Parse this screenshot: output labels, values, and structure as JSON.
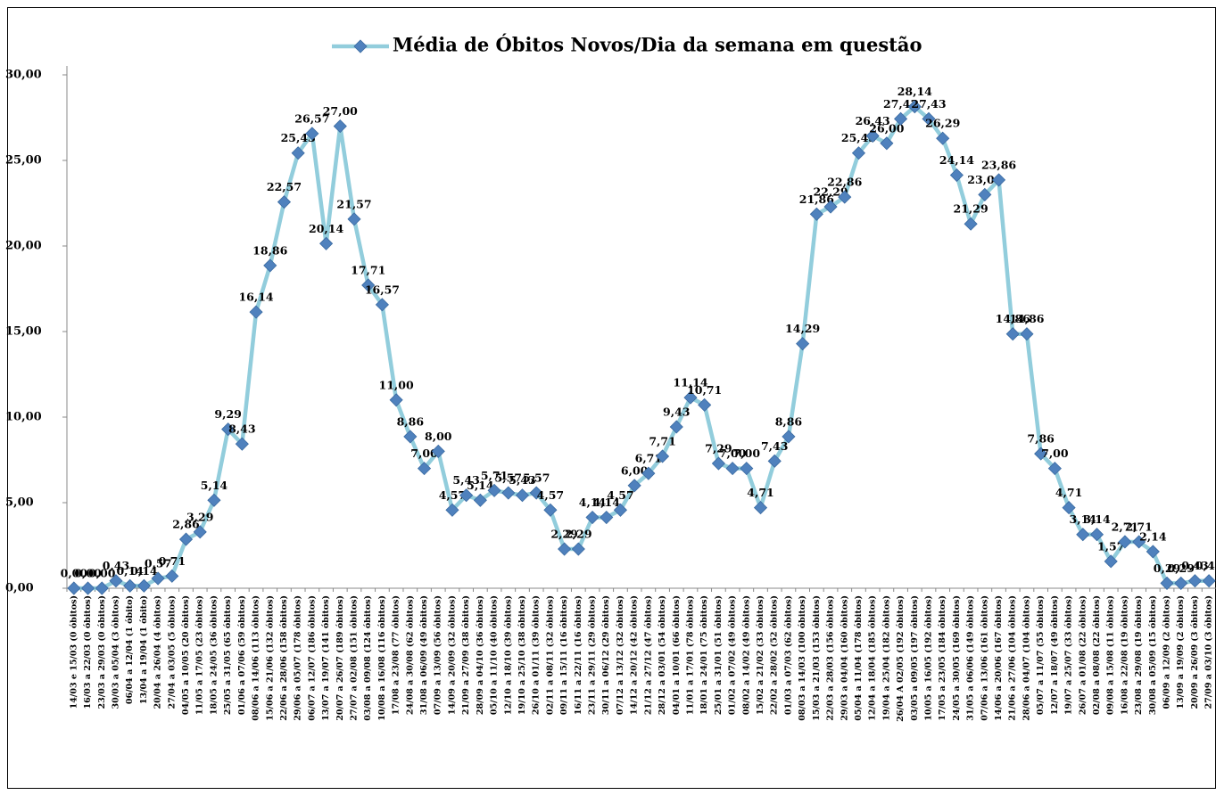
{
  "chart_data": {
    "type": "line",
    "legend_position": "top",
    "grid": false,
    "categories": [
      "14/03 e 15/03 (0 óbitos)",
      "16/03 a 22/03 (0 óbitos)",
      "23/03 a 29/03 (0 óbitos)",
      "30/03 a 05/04 (3 óbitos)",
      "06/04 a 12/04 (1 óbito)",
      "13/04 a 19/04 (1 óbito)",
      "20/04 a 26/04 (4 óbitos)",
      "27/04 a 03/05 (5 óbitos)",
      "04/05 a 10/05 (20 óbitos)",
      "11/05 a 17/05 (23 óbitos)",
      "18/05 a 24/05 (36 óbitos)",
      "25/05 a 31/05 (65 óbitos)",
      "01/06 a 07/06 (59 óbitos)",
      "08/06 a 14/06 (113 óbitos)",
      "15/06 a 21/06 (132 óbitos)",
      "22/06 a 28/06 (158 óbitos)",
      "29/06 a 05/07 (178 óbitos)",
      "06/07 a 12/07 (186 óbitos)",
      "13/07 a 19/07 (141 óbitos)",
      "20/07 a 26/07 (189 óbitos)",
      "27/07 a 02/08 (151 óbitos)",
      "03/08 a 09/08 (124 óbitos)",
      "10/08 a 16/08 (116 óbitos)",
      "17/08 a 23/08 (77 óbitos)",
      "24/08 a 30/08 (62 óbitos)",
      "31/08 a 06/09 (49 óbitos)",
      "07/09 a 13/09 (56 óbitos)",
      "14/09 a 20/09 (32 óbitos)",
      "21/09 a 27/09 (38 óbitos)",
      "28/09 a 04/10 (36 óbitos)",
      "05/10 a 11/10 (40 óbitos)",
      "12/10 a 18/10 (39 óbitos)",
      "19/10 a 25/10 (38 óbitos)",
      "26/10 a 01/11 (39 óbitos)",
      "02/11 a 08/11 (32 óbitos)",
      "09/11 a 15/11 (16 óbitos)",
      "16/11 a 22/11 (16 óbitos)",
      "23/11 a 29/11 (29 óbitos)",
      "30/11 a 06/12 (29 óbitos)",
      "07/12 a 13/12 (32 óbitos)",
      "14/12 a 20/12 (42 óbitos)",
      "21/12 a 27/12 (47 óbitos)",
      "28/12 a 03/01 (54 óbitos)",
      "04/01 a 10/01 (66 óbitos)",
      "11/01 a 17/01 (78 óbitos)",
      "18/01 a 24/01 (75 óbitos)",
      "25/01 a 31/01 (51 óbitos)",
      "01/02 a 07/02 (49 óbitos)",
      "08/02 a 14/02 (49 óbitos)",
      "15/02 a 21/02 (33 óbitos)",
      "22/02 a 28/02 (52 óbitos)",
      "01/03 a 07/03 (62 óbitos)",
      "08/03 a 14/03 (100 óbitos)",
      "15/03 a 21/03 (153 óbitos)",
      "22/03 a 28/03 (156 óbitos)",
      "29/03 a 04/04 (160 óbitos)",
      "05/04 a 11/04 (178 óbitos)",
      "12/04 a 18/04 (185 óbitos)",
      "19/04 a 25/04 (182 óbitos)",
      "26/04 A 02/05 (192 óbitos)",
      "03/05 a 09/05 (197 óbitos)",
      "10/05 a 16/05 (192 óbitos)",
      "17/05 a 23/05 (184 óbitos)",
      "24/05 a 30/05 (169 óbitos)",
      "31/05 a 06/06 (149 óbitos)",
      "07/06 a 13/06 (161 óbitos)",
      "14/06 a 20/06 (167 óbitos)",
      "21/06 a 27/06 (104 óbitos)",
      "28/06 a 04/07 (104 óbitos)",
      "05/07 a 11/07 (55 óbitos)",
      "12/07 a 18/07 (49 óbitos)",
      "19/07 a 25/07 (33 óbitos)",
      "26/07 a 01/08 (22 óbitos)",
      "02/08 a 08/08 (22 óbitos)",
      "09/08 a 15/08 (11 óbitos)",
      "16/08 a 22/08 (19 óbitos)",
      "23/08 a 29/08 (19 óbitos)",
      "30/08 a 05/09 (15 óbitos)",
      "06/09 a 12/09 (2 óbitos)",
      "13/09 a 19/09 (2 óbitos)",
      "20/09 a 26/09 (3 óbitos)",
      "27/09 a 03/10 (3 óbitos)"
    ],
    "series": [
      {
        "name": "Média de Óbitos Novos/Dia da semana em questão",
        "color": "#92cddc",
        "marker_color": "#4f81bd",
        "values": [
          0,
          0,
          0,
          0.43,
          0.14,
          0.14,
          0.57,
          0.71,
          2.86,
          3.29,
          5.14,
          9.29,
          8.43,
          16.14,
          18.86,
          22.57,
          25.43,
          26.57,
          20.14,
          27,
          21.57,
          17.71,
          16.57,
          11,
          8.86,
          7,
          8,
          4.57,
          5.43,
          5.14,
          5.71,
          5.57,
          5.43,
          5.57,
          4.57,
          2.29,
          2.29,
          4.14,
          4.14,
          4.57,
          6,
          6.71,
          7.71,
          9.43,
          11.14,
          10.71,
          7.29,
          7,
          7,
          4.71,
          7.43,
          8.86,
          14.29,
          21.86,
          22.29,
          22.86,
          25.43,
          26.43,
          26,
          27.43,
          28.14,
          27.43,
          26.29,
          24.14,
          21.29,
          23,
          23.86,
          14.86,
          14.86,
          7.86,
          7,
          4.71,
          3.14,
          3.14,
          1.57,
          2.71,
          2.71,
          2.14,
          0.29,
          0.29,
          0.43,
          0.43
        ],
        "value_labels": [
          "0,00",
          "0,00",
          "0,00",
          "0,43",
          "0,14",
          "0,14",
          "0,57",
          "0,71",
          "2,86",
          "3,29",
          "5,14",
          "9,29",
          "8,43",
          "16,14",
          "18,86",
          "22,57",
          "25,43",
          "26,57",
          "20,14",
          "27,00",
          "21,57",
          "17,71",
          "16,57",
          "11,00",
          "8,86",
          "7,00",
          "8,00",
          "4,57",
          "5,43",
          "5,14",
          "5,71",
          "5,57",
          "5,43",
          "5,57",
          "4,57",
          "2,29",
          "2,29",
          "4,14",
          "4,14",
          "4,57",
          "6,00",
          "6,71",
          "7,71",
          "9,43",
          "11,14",
          "10,71",
          "7,29",
          "7,00",
          "7,00",
          "4,71",
          "7,43",
          "8,86",
          "14,29",
          "21,86",
          "22,29",
          "22,86",
          "25,43",
          "26,43",
          "26,00",
          "27,43",
          "28,14",
          "27,43",
          "26,29",
          "24,14",
          "21,29",
          "23,00",
          "23,86",
          "14,86",
          "14,86",
          "7,86",
          "7,00",
          "4,71",
          "3,14",
          "3,14",
          "1,57",
          "2,71",
          "2,71",
          "2,14",
          "0,29",
          "0,29",
          "0,43",
          "0,43"
        ]
      }
    ],
    "ylim": [
      0,
      30
    ],
    "yticks": [
      {
        "value": 0,
        "label": "0,00"
      },
      {
        "value": 5,
        "label": "5,00"
      },
      {
        "value": 10,
        "label": "10,00"
      },
      {
        "value": 15,
        "label": "15,00"
      },
      {
        "value": 20,
        "label": "20,00"
      },
      {
        "value": 25,
        "label": "25,00"
      },
      {
        "value": 30,
        "label": "30,00"
      }
    ]
  }
}
